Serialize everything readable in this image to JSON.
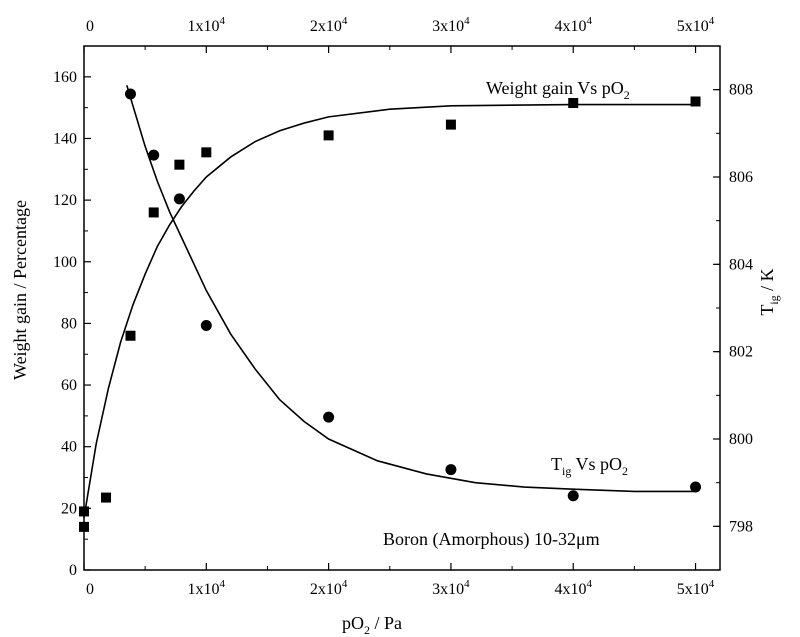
{
  "chart_data": {
    "type": "scatter",
    "title": "",
    "note": "Boron (Amorphous) 10-32μm",
    "xlabel": {
      "base": "pO",
      "sub": "2",
      "tail": " / Pa"
    },
    "ylabel_left": "Weight gain / Percentage",
    "ylabel_right": {
      "base": "T",
      "sub": "ig",
      "tail": " / K"
    },
    "xlim": [
      0,
      52000
    ],
    "ylim_left": [
      0,
      170
    ],
    "ylim_right": [
      797,
      809
    ],
    "x_ticks": [
      {
        "value": 0,
        "base": "0",
        "exp": ""
      },
      {
        "value": 10000,
        "base": "1x10",
        "exp": "4"
      },
      {
        "value": 20000,
        "base": "2x10",
        "exp": "4"
      },
      {
        "value": 30000,
        "base": "3x10",
        "exp": "4"
      },
      {
        "value": 40000,
        "base": "4x10",
        "exp": "4"
      },
      {
        "value": 50000,
        "base": "5x10",
        "exp": "4"
      }
    ],
    "y_left_ticks": [
      0,
      20,
      40,
      60,
      80,
      100,
      120,
      140,
      160
    ],
    "y_right_ticks": [
      798,
      800,
      802,
      804,
      806,
      808
    ],
    "series": [
      {
        "name": "Weight gain Vs pO",
        "name_sub": "2",
        "axis": "left",
        "marker": "square",
        "points": [
          [
            0,
            14
          ],
          [
            0,
            19
          ],
          [
            1800,
            23.5
          ],
          [
            3800,
            76
          ],
          [
            5700,
            116
          ],
          [
            7800,
            131.5
          ],
          [
            10000,
            135.5
          ],
          [
            20000,
            141
          ],
          [
            30000,
            144.5
          ],
          [
            40000,
            151.5
          ],
          [
            50000,
            152
          ]
        ],
        "fit": [
          [
            0,
            17
          ],
          [
            1000,
            41
          ],
          [
            2000,
            59
          ],
          [
            3000,
            74
          ],
          [
            4000,
            86
          ],
          [
            5000,
            96
          ],
          [
            6000,
            105
          ],
          [
            7000,
            112
          ],
          [
            8000,
            118
          ],
          [
            9000,
            123
          ],
          [
            10000,
            127.5
          ],
          [
            12000,
            134
          ],
          [
            14000,
            139
          ],
          [
            16000,
            142.5
          ],
          [
            18000,
            145
          ],
          [
            20000,
            147
          ],
          [
            25000,
            149.5
          ],
          [
            30000,
            150.6
          ],
          [
            40000,
            151
          ],
          [
            50000,
            151
          ]
        ]
      },
      {
        "name": "T",
        "name_sub": "ig",
        "name_tail": " Vs pO",
        "name_tail_sub": "2",
        "axis": "right",
        "marker": "circle",
        "points": [
          [
            3800,
            807.9
          ],
          [
            5700,
            806.5
          ],
          [
            7800,
            805.5
          ],
          [
            10000,
            802.6
          ],
          [
            20000,
            800.5
          ],
          [
            30000,
            799.3
          ],
          [
            40000,
            798.7
          ],
          [
            50000,
            798.9
          ]
        ],
        "fit": [
          [
            3500,
            808.1
          ],
          [
            5000,
            806.7
          ],
          [
            6000,
            805.9
          ],
          [
            7000,
            805.2
          ],
          [
            8000,
            804.6
          ],
          [
            9000,
            804.0
          ],
          [
            10000,
            803.4
          ],
          [
            12000,
            802.4
          ],
          [
            14000,
            801.6
          ],
          [
            16000,
            800.9
          ],
          [
            18000,
            800.4
          ],
          [
            20000,
            800.0
          ],
          [
            24000,
            799.5
          ],
          [
            28000,
            799.2
          ],
          [
            32000,
            799.0
          ],
          [
            36000,
            798.9
          ],
          [
            40000,
            798.85
          ],
          [
            45000,
            798.8
          ],
          [
            50000,
            798.8
          ]
        ]
      }
    ]
  }
}
